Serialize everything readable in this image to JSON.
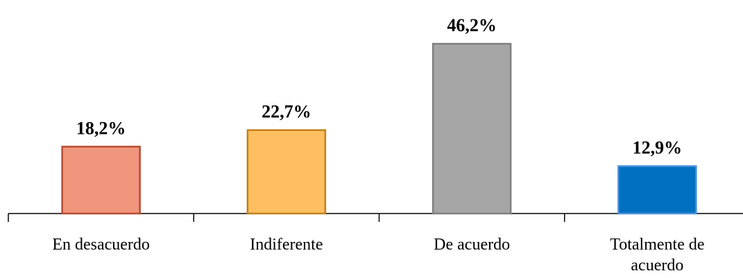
{
  "chart_data": {
    "type": "bar",
    "categories": [
      "En desacuerdo",
      "Indiferente",
      "De acuerdo",
      "Totalmente de acuerdo"
    ],
    "values": [
      18.2,
      22.7,
      46.2,
      12.9
    ],
    "value_labels": [
      "18,2%",
      "22,7%",
      "46,2%",
      "12,9%"
    ],
    "colors": [
      "#f0967c",
      "#ffbf60",
      "#a6a6a6",
      "#0070c0"
    ],
    "edge_colors": [
      "#b84a30",
      "#c0801a",
      "#7f7f7f",
      "#4a90d8"
    ]
  }
}
